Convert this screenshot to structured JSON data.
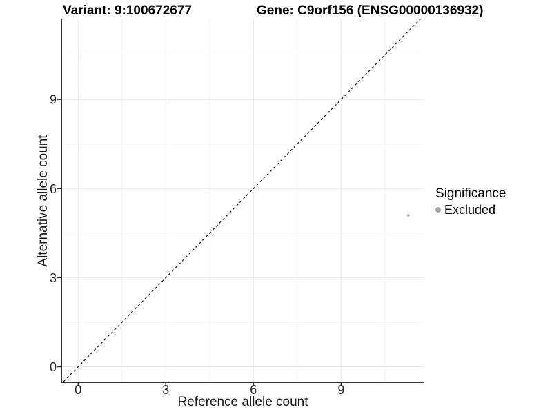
{
  "figure": {
    "background": "#ffffff"
  },
  "chart_data": {
    "type": "scatter",
    "title_left": "Variant: 9:100672677",
    "title_right": "Gene: C9orf156 (ENSG00000136932)",
    "xlabel": "Reference allele count",
    "ylabel": "Alternative allele count",
    "xlim": [
      -0.55,
      11.85
    ],
    "ylim": [
      -0.5,
      11.7
    ],
    "xticks": [
      0,
      3,
      6,
      9
    ],
    "yticks": [
      0,
      3,
      6,
      9
    ],
    "minor_ticks_x": [
      1.5,
      4.5,
      7.5,
      10.5
    ],
    "minor_ticks_y": [
      1.5,
      4.5,
      7.5,
      10.5
    ],
    "grid": "major-and-minor",
    "series": [
      {
        "name": "Excluded",
        "points": [
          {
            "x": 11.3,
            "y": 5.1
          }
        ],
        "color": "#b5b5b5",
        "point_radius": 2
      }
    ],
    "reference_line": {
      "type": "identity y=x",
      "style": "dashed",
      "color": "#111111"
    },
    "legend": {
      "title": "Significance",
      "position": "right",
      "items": [
        {
          "label": "Excluded",
          "color": "#a6a6a6"
        }
      ]
    },
    "style_colors": {
      "grid_major": "#e8e8e8",
      "grid_minor": "#f3f3f3",
      "axis_line": "#333333",
      "tick_label": "#262626"
    }
  }
}
